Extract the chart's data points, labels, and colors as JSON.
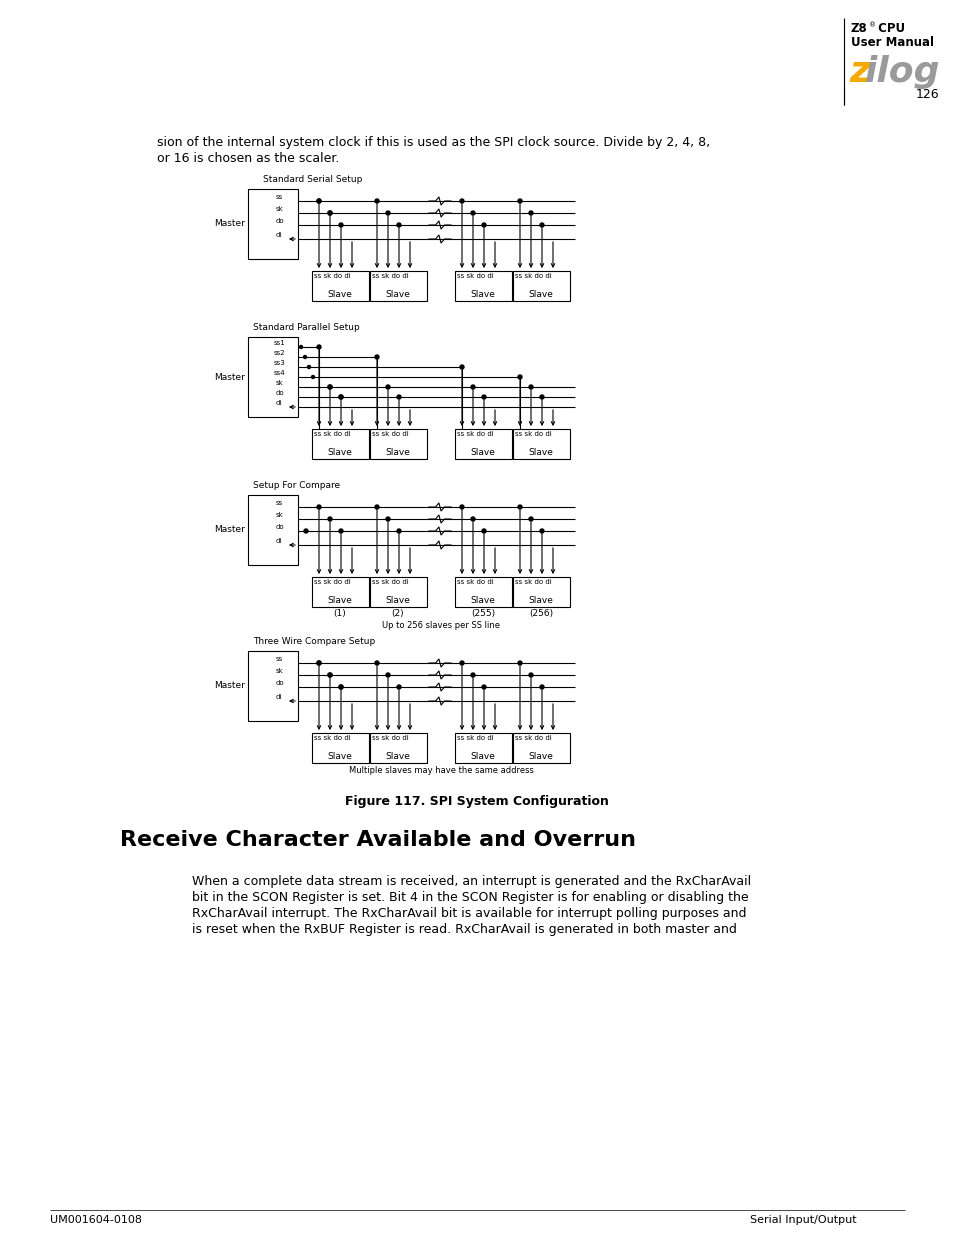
{
  "page_number": "126",
  "header_title": "Z8® CPU",
  "header_subtitle": "User Manual",
  "logo_color": "#f5a800",
  "logo_gray": "#9a9a9a",
  "footer_left": "UM001604-0108",
  "footer_right": "Serial Input/Output",
  "intro_line1": "sion of the internal system clock if this is used as the SPI clock source. Divide by 2, 4, 8,",
  "intro_line2": "or 16 is chosen as the scaler.",
  "figure_caption": "Figure 117. SPI System Configuration",
  "section_title": "Receive Character Available and Overrun",
  "body_line1": "When a complete data stream is received, an interrupt is generated and the RxCharAvail",
  "body_line2": "bit in the SCON Register is set. Bit 4 in the SCON Register is for enabling or disabling the",
  "body_line3": "RxCharAvail interrupt. The RxCharAvail bit is available for interrupt polling purposes and",
  "body_line4": "is reset when the RxBUF Register is read. RxCharAvail is generated in both master and",
  "bg_color": "#ffffff"
}
